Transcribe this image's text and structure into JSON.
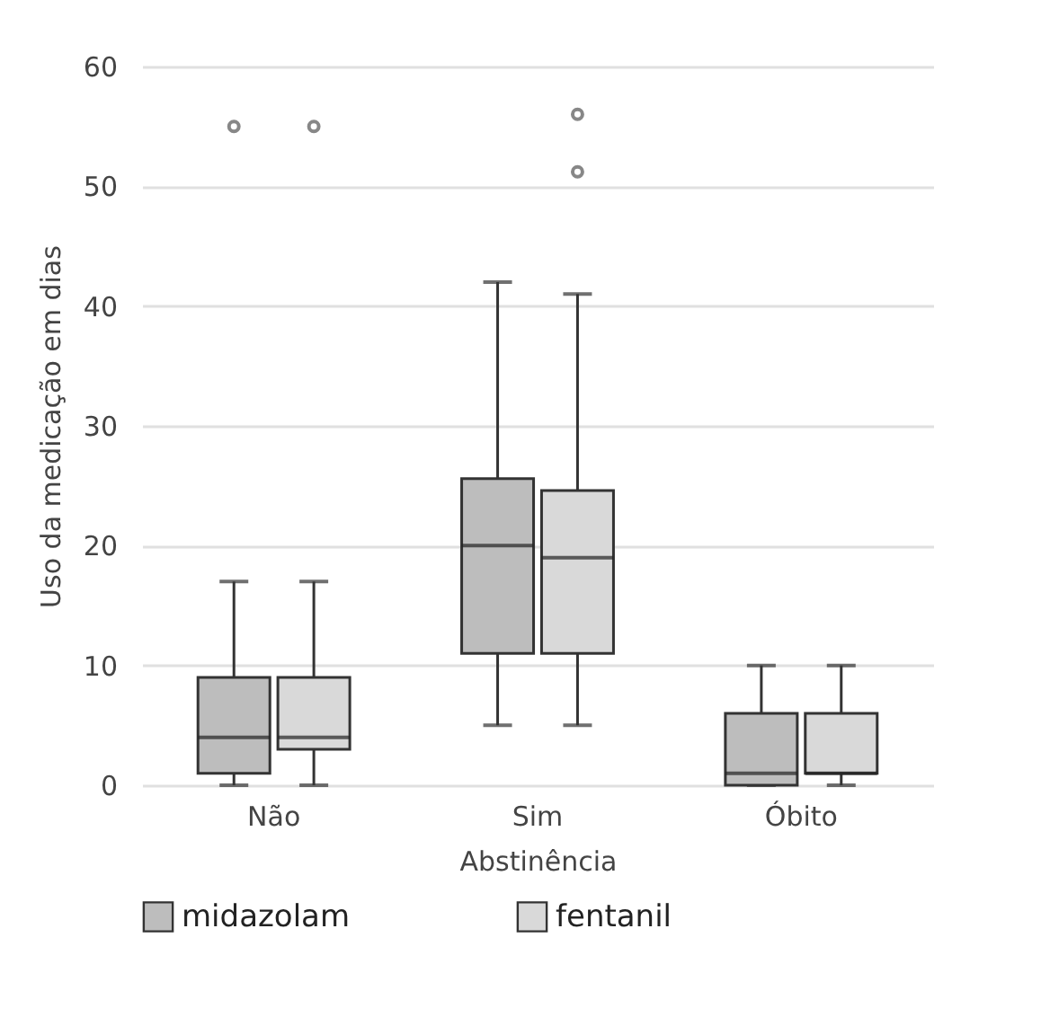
{
  "chart_data": {
    "type": "box",
    "xlabel": "Abstinência",
    "ylabel": "Uso da medicação em dias",
    "categories": [
      "Não",
      "Sim",
      "Óbito"
    ],
    "ylim": [
      0,
      60
    ],
    "yticks": [
      0,
      10,
      20,
      30,
      40,
      50,
      60
    ],
    "grid": "y",
    "legend": "bottom",
    "series": [
      {
        "name": "midazolam",
        "color": "#bdbdbd",
        "boxes": [
          {
            "low": 0,
            "q1": 1,
            "median": 4,
            "q3": 9,
            "high": 17,
            "outliers": [
              55
            ]
          },
          {
            "low": 5,
            "q1": 11,
            "median": 20,
            "q3": 25.6,
            "high": 42
          },
          {
            "low": 0,
            "q1": 0,
            "median": 1,
            "q3": 6,
            "high": 10
          }
        ]
      },
      {
        "name": "fentanil",
        "color": "#d9d9d9",
        "boxes": [
          {
            "low": 0,
            "q1": 3,
            "median": 4,
            "q3": 9,
            "high": 17,
            "outliers": [
              55
            ]
          },
          {
            "low": 5,
            "q1": 11,
            "median": 19,
            "q3": 24.6,
            "high": 41,
            "outliers": [
              56,
              51.2
            ]
          },
          {
            "low": 0,
            "q1": 1,
            "median": 1,
            "q3": 6,
            "high": 10
          }
        ]
      }
    ]
  }
}
